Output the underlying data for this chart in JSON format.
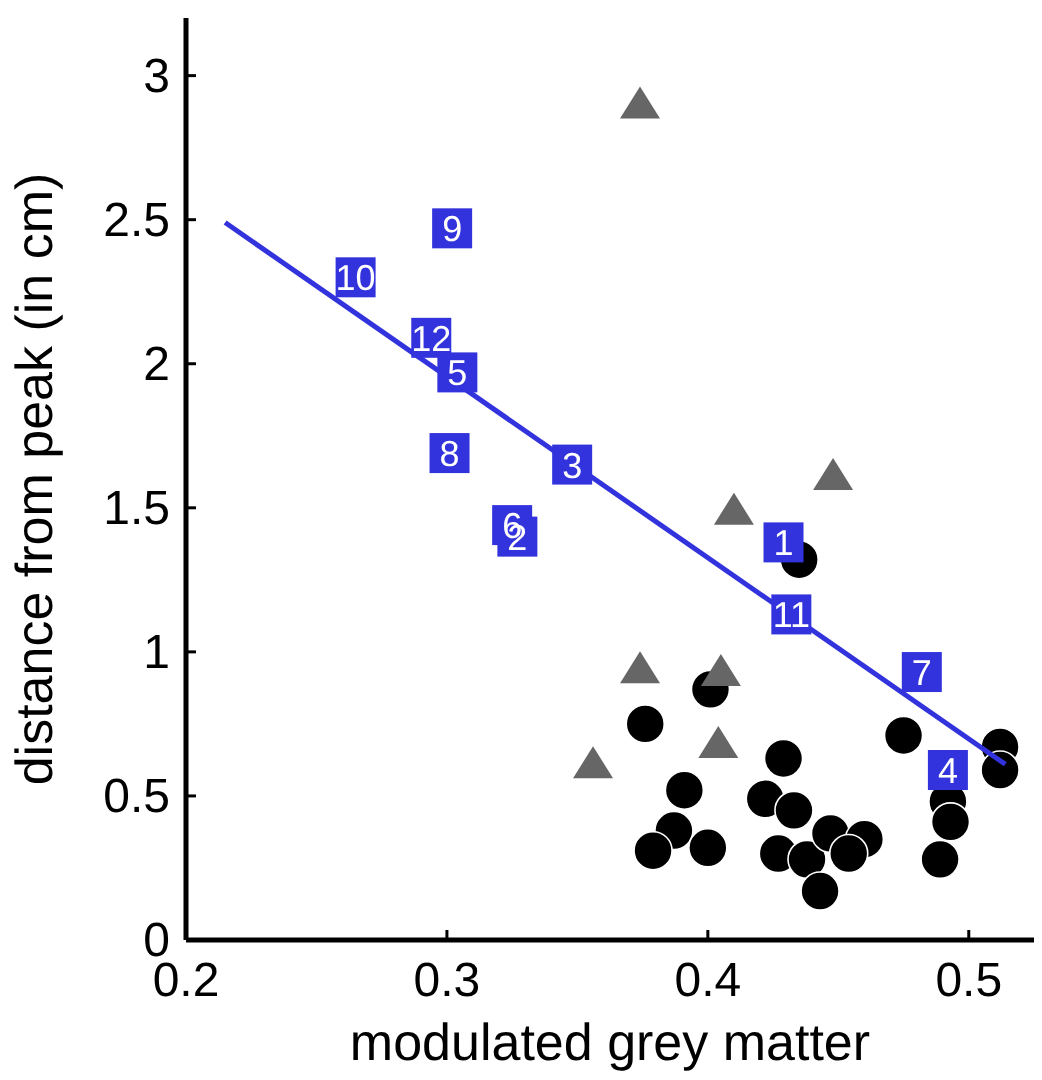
{
  "chart_data": {
    "type": "scatter",
    "xlabel": "modulated grey matter",
    "ylabel": "distance from peak (in cm)",
    "xlim": [
      0.2,
      0.525
    ],
    "ylim": [
      0,
      3.2
    ],
    "xticks": [
      0.2,
      0.3,
      0.4,
      0.5
    ],
    "yticks": [
      0,
      0.5,
      1,
      1.5,
      2,
      2.5,
      3
    ],
    "grid": false,
    "series": [
      {
        "type": "scatter",
        "marker": "circle",
        "color": "#000000",
        "x": [
          0.435,
          0.401,
          0.376,
          0.391,
          0.387,
          0.379,
          0.4,
          0.429,
          0.422,
          0.433,
          0.427,
          0.438,
          0.447,
          0.46,
          0.454,
          0.443,
          0.475,
          0.492,
          0.493,
          0.489,
          0.512,
          0.512
        ],
        "values": [
          1.32,
          0.87,
          0.75,
          0.52,
          0.38,
          0.31,
          0.32,
          0.63,
          0.49,
          0.45,
          0.3,
          0.28,
          0.37,
          0.35,
          0.3,
          0.17,
          0.71,
          0.48,
          0.41,
          0.28,
          0.67,
          0.59
        ]
      },
      {
        "type": "scatter",
        "marker": "triangle",
        "color": "#666666",
        "x": [
          0.374,
          0.41,
          0.448,
          0.374,
          0.405,
          0.404,
          0.356
        ],
        "values": [
          2.9,
          1.49,
          1.61,
          0.94,
          0.93,
          0.68,
          0.61
        ]
      },
      {
        "type": "line",
        "marker": "none",
        "color": "#3333dd",
        "x": [
          0.215,
          0.514
        ],
        "values": [
          2.49,
          0.61
        ]
      },
      {
        "type": "scatter",
        "marker": "square",
        "color": "#3333dd",
        "x": [
          0.429,
          0.325,
          0.327,
          0.348,
          0.492,
          0.304,
          0.482,
          0.301,
          0.302,
          0.265,
          0.432,
          0.294
        ],
        "values": [
          1.38,
          1.44,
          1.4,
          1.65,
          0.59,
          1.97,
          0.93,
          1.69,
          2.47,
          2.3,
          1.13,
          2.09
        ]
      }
    ],
    "annotations": [
      {
        "text": "1",
        "x": 0.429,
        "y": 1.38
      },
      {
        "text": "6",
        "x": 0.325,
        "y": 1.44
      },
      {
        "text": "2",
        "x": 0.327,
        "y": 1.4
      },
      {
        "text": "3",
        "x": 0.348,
        "y": 1.65
      },
      {
        "text": "4",
        "x": 0.492,
        "y": 0.59
      },
      {
        "text": "5",
        "x": 0.304,
        "y": 1.97
      },
      {
        "text": "7",
        "x": 0.482,
        "y": 0.93
      },
      {
        "text": "8",
        "x": 0.301,
        "y": 1.69
      },
      {
        "text": "9",
        "x": 0.302,
        "y": 2.47
      },
      {
        "text": "10",
        "x": 0.265,
        "y": 2.3
      },
      {
        "text": "11",
        "x": 0.432,
        "y": 1.13
      },
      {
        "text": "12",
        "x": 0.294,
        "y": 2.09
      }
    ]
  }
}
